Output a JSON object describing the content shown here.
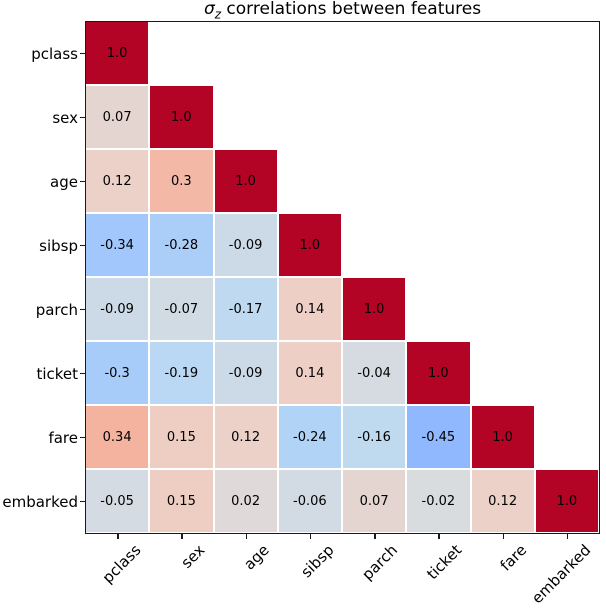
{
  "figure": {
    "title_parts": {
      "symbol": "σ",
      "subscript": "z",
      "rest": " correlations between features"
    }
  },
  "chart_data": {
    "type": "heatmap",
    "title": "σ_z correlations between features",
    "subtitle": "",
    "triangle": "lower",
    "categories": [
      "pclass",
      "sex",
      "age",
      "sibsp",
      "parch",
      "ticket",
      "fare",
      "embarked"
    ],
    "x_tick_labels": [
      "pclass",
      "sex",
      "age",
      "sibsp",
      "parch",
      "ticket",
      "fare",
      "embarked"
    ],
    "y_tick_labels": [
      "pclass",
      "sex",
      "age",
      "sibsp",
      "parch",
      "ticket",
      "fare",
      "embarked"
    ],
    "rows": [
      [
        1.0
      ],
      [
        0.07,
        1.0
      ],
      [
        0.12,
        0.3,
        1.0
      ],
      [
        -0.34,
        -0.28,
        -0.09,
        1.0
      ],
      [
        -0.09,
        -0.07,
        -0.17,
        0.14,
        1.0
      ],
      [
        -0.3,
        -0.19,
        -0.09,
        0.14,
        -0.04,
        1.0
      ],
      [
        0.34,
        0.15,
        0.12,
        -0.24,
        -0.16,
        -0.45,
        1.0
      ],
      [
        -0.05,
        0.15,
        0.02,
        -0.06,
        0.07,
        -0.02,
        0.12,
        1.0
      ]
    ],
    "value_range": [
      -1,
      1
    ],
    "colormap": {
      "name": "coolwarm",
      "vmin": -1,
      "vmax": 1,
      "anchors": [
        "#3b4cc0",
        "#5776e2",
        "#779ef9",
        "#97c0ff",
        "#b8d8f4",
        "#dddcdc",
        "#f4c9bb",
        "#f4a991",
        "#e57e67",
        "#c74843",
        "#b40426"
      ]
    },
    "cell_text_color": "#000000",
    "cell_edge_color": "#ffffff",
    "axis_color": "#1a1a1a",
    "background_color": "#ffffff",
    "legend": "none",
    "grid": "off"
  }
}
